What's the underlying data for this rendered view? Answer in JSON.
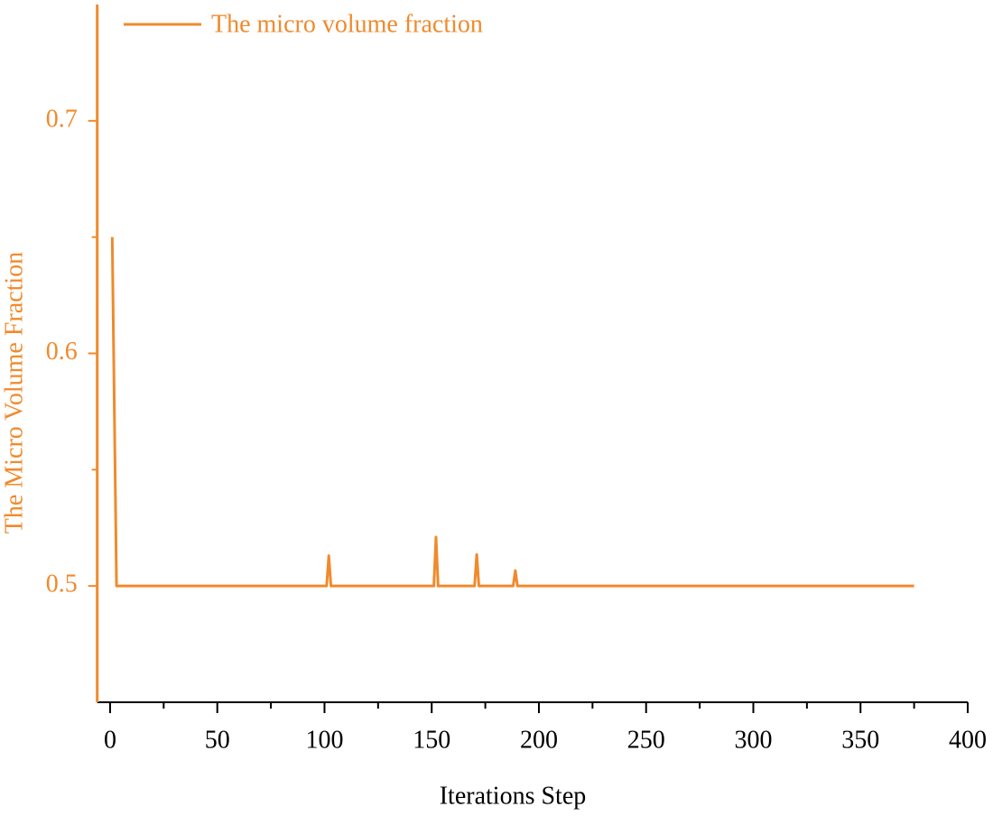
{
  "chart_data": {
    "type": "line",
    "x_label": "Iterations Step",
    "y_label": "The Micro Volume Fraction",
    "x": [
      1,
      3,
      101,
      102,
      103,
      151,
      152,
      153,
      170,
      171,
      172,
      188,
      189,
      190,
      375
    ],
    "series": [
      {
        "name": "The micro volume fraction",
        "color": "#f08a2c",
        "values": [
          0.65,
          0.5,
          0.5,
          0.513,
          0.5,
          0.5,
          0.521,
          0.5,
          0.5,
          0.5135,
          0.5,
          0.5,
          0.5066,
          0.5,
          0.5
        ]
      }
    ],
    "xlim": [
      -6,
      400
    ],
    "xticks": [
      0,
      50,
      100,
      150,
      200,
      250,
      300,
      350,
      400
    ],
    "xminorticks": [
      25,
      75,
      125,
      175,
      225,
      275,
      325,
      375
    ],
    "ylim": [
      0.45,
      0.75
    ],
    "yticks": [
      0.5,
      0.6,
      0.7
    ],
    "yminorticks": [
      0.55,
      0.65
    ],
    "legend": "top-left",
    "grid": false
  }
}
